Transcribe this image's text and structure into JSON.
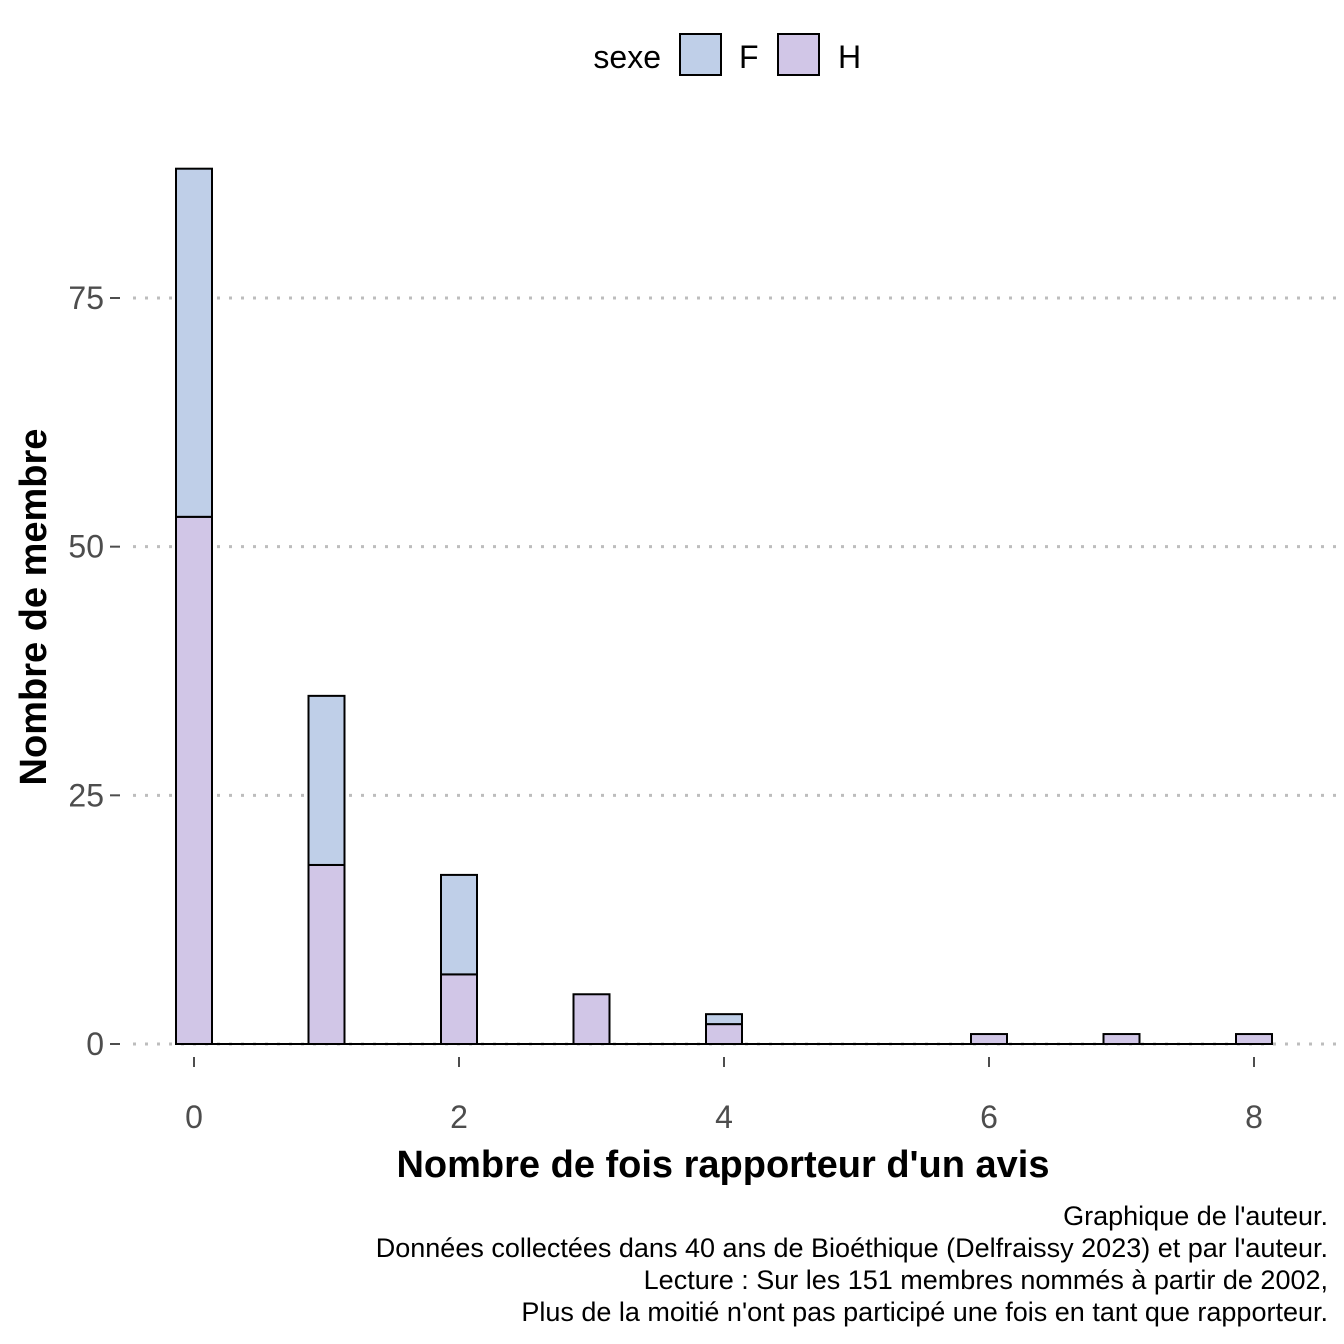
{
  "chart_data": {
    "type": "bar",
    "stacked": true,
    "xlabel": "Nombre de fois rapporteur d'un avis",
    "ylabel": "Nombre de membre",
    "x": [
      0,
      1,
      2,
      3,
      4,
      5,
      6,
      7,
      8
    ],
    "series": [
      {
        "name": "F",
        "color": "#bfcfe8",
        "values": [
          35,
          17,
          10,
          0,
          1,
          0,
          0,
          0,
          0
        ]
      },
      {
        "name": "H",
        "color": "#d1c6e7",
        "values": [
          53,
          18,
          7,
          5,
          2,
          0,
          1,
          1,
          1
        ]
      }
    ],
    "x_ticks": [
      0,
      2,
      4,
      6,
      8
    ],
    "y_ticks": [
      0,
      25,
      50,
      75
    ],
    "xlim": [
      -0.35,
      8.35
    ],
    "ylim": [
      0,
      88
    ],
    "grid": "horizontal dotted",
    "legend": {
      "title": "sexe",
      "position": "top"
    }
  },
  "caption": [
    "Graphique de l'auteur.",
    "Données collectées dans 40 ans de Bioéthique (Delfraissy 2023) et par l'auteur.",
    "Lecture : Sur les 151 membres nommés à partir de 2002,",
    "Plus de la moitié n'ont pas participé une fois en tant que rapporteur."
  ]
}
